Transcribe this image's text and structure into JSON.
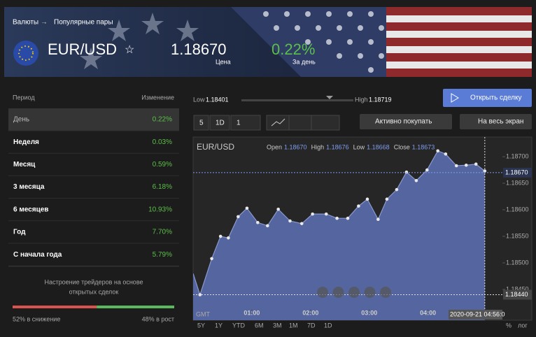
{
  "header": {
    "breadcrumb": [
      "Валюты",
      "Популярные пары"
    ],
    "symbol": "EUR/USD",
    "price": "1.18670",
    "price_caption": "Цена",
    "change": "0.22%",
    "change_caption": "За день"
  },
  "performance": {
    "columns": [
      "Период",
      "Изменение"
    ],
    "rows": [
      [
        "День",
        "0.22%"
      ],
      [
        "Неделя",
        "0.03%"
      ],
      [
        "Месяц",
        "0.59%"
      ],
      [
        "3 месяца",
        "6.18%"
      ],
      [
        "6 месяцев",
        "10.93%"
      ],
      [
        "Год",
        "7.70%"
      ],
      [
        "С начала года",
        "5.79%"
      ]
    ]
  },
  "sentiment": {
    "title": [
      "Настроение трейдеров на основе",
      "открытых сделок"
    ],
    "down": 52,
    "up": 48,
    "down_label": "52% в снижение",
    "up_label": "48% в рост",
    "down_color": "#d9534f",
    "up_color": "#5cb85c"
  },
  "day_range": {
    "low_caption": "Low",
    "low": "1.18401",
    "high_caption": "High",
    "high": "1.18719"
  },
  "buttons": {
    "open_trade": "Открыть сделку",
    "active_buy": "Активно покупать",
    "fullscreen": "На весь экран"
  },
  "toolbar": [
    "5",
    "1D",
    "1"
  ],
  "chart_data": {
    "type": "area",
    "symbol": "EUR/USD",
    "ohlc": [
      {
        "name": "Open",
        "value": "1.18670"
      },
      {
        "name": "High",
        "value": "1.18676"
      },
      {
        "name": "Low",
        "value": "1.18668"
      },
      {
        "name": "Close",
        "value": "1.18673"
      }
    ],
    "x": [
      0,
      7,
      19,
      28,
      36,
      46,
      55,
      66,
      76,
      87,
      99,
      111,
      122,
      136,
      147,
      158,
      169,
      178,
      189,
      198,
      208,
      218,
      228,
      239,
      250,
      258,
      269,
      279,
      289,
      298
    ],
    "series": [
      {
        "name": "EUR/USD",
        "color": "#55659f",
        "values": [
          1.1848,
          1.1844,
          1.18508,
          1.1855,
          1.18547,
          1.18587,
          1.18603,
          1.18576,
          1.1857,
          1.18601,
          1.18579,
          1.18574,
          1.18592,
          1.18592,
          1.18584,
          1.18584,
          1.18607,
          1.1862,
          1.18582,
          1.1862,
          1.18638,
          1.18671,
          1.18655,
          1.18675,
          1.18711,
          1.18705,
          1.18683,
          1.18684,
          1.18686,
          1.18673
        ]
      }
    ],
    "xlim": [
      0,
      316
    ],
    "ylim": [
      1.18392,
      1.18737
    ],
    "xticks": [
      {
        "value": 60,
        "label": "01:00"
      },
      {
        "value": 120,
        "label": "02:00"
      },
      {
        "value": 180,
        "label": "03:00"
      },
      {
        "value": 240,
        "label": "04:00"
      }
    ],
    "yticks": [
      {
        "value": 1.187,
        "label": "1.18700"
      },
      {
        "value": 1.1865,
        "label": "1.18650"
      },
      {
        "value": 1.186,
        "label": "1.18600"
      },
      {
        "value": 1.1855,
        "label": "1.18550"
      },
      {
        "value": 1.185,
        "label": "1.18500"
      },
      {
        "value": 1.1845,
        "label": "1.18450"
      }
    ],
    "price_lines": [
      {
        "value": 1.1867,
        "label": "1.18670"
      },
      {
        "value": 1.1844,
        "label": "1.18440"
      }
    ],
    "crosshair": {
      "value": 298,
      "label": "2020-09-21 04:56:0"
    },
    "timezone": "GMT",
    "ranges": [
      "5Y",
      "1Y",
      "YTD",
      "6M",
      "3M",
      "1M",
      "7D",
      "1D"
    ],
    "scale_options": [
      "%",
      "лог"
    ]
  }
}
